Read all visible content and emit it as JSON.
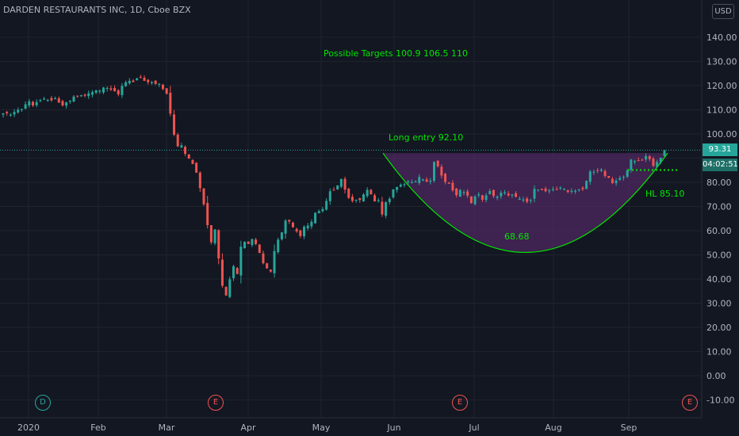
{
  "header": {
    "symbol_title": "DARDEN RESTAURANTS INC, 1D, Cboe BZX",
    "currency": "USD"
  },
  "price_tags": {
    "last_price": "93.31",
    "countdown": "04:02:51"
  },
  "annotations": {
    "targets": "Possible Targets  100.9   106.5   110",
    "long_entry": "Long entry 92.10",
    "hl": "HL 85.10",
    "bottom": "68.68"
  },
  "events": [
    {
      "label": "D",
      "kind": "dividend"
    },
    {
      "label": "E",
      "kind": "earnings"
    },
    {
      "label": "E",
      "kind": "earnings"
    },
    {
      "label": "E",
      "kind": "earnings"
    }
  ],
  "colors": {
    "up": "#26a69a",
    "down": "#ef5350",
    "annotation": "#00e600",
    "cup_fill": "#5b2a6e",
    "price_line": "#26a69a"
  },
  "chart_data": {
    "type": "candlestick",
    "title": "DARDEN RESTAURANTS INC, 1D, Cboe BZX",
    "y_ticks": [
      140,
      130,
      120,
      110,
      100,
      90,
      80,
      70,
      60,
      50,
      40,
      30,
      20,
      10,
      0,
      -10
    ],
    "y_tick_labels": [
      "140.00",
      "130.00",
      "120.00",
      "110.00",
      "100.00",
      "",
      "80.00",
      "70.00",
      "60.00",
      "50.00",
      "40.00",
      "30.00",
      "20.00",
      "10.00",
      "0.00",
      "-10.00"
    ],
    "x_tick_labels": [
      "2020",
      "Feb",
      "Mar",
      "Apr",
      "May",
      "Jun",
      "Jul",
      "Aug",
      "Sep"
    ],
    "ylim": [
      -14,
      153
    ],
    "last_price": 93.31,
    "long_entry": 92.1,
    "higher_low": 85.1,
    "cup_bottom": 68.68,
    "cup_curve_low": 51,
    "series": [
      {
        "close": [
          108.5,
          108.6,
          108.0,
          109.1,
          110.0,
          110.3,
          112.3,
          113.5,
          111.8,
          113.2,
          114.0,
          114.6,
          114.1,
          113.9,
          114.8,
          113.0,
          111.8,
          113.1,
          113.7,
          115.5,
          115.5,
          116.0,
          115.8,
          116.8,
          117.3,
          118.0,
          117.9,
          119.2,
          119.0,
          118.3,
          117.7,
          116.4,
          119.9,
          121.4,
          122.0,
          121.5,
          123.0,
          123.3,
          122.0,
          121.4,
          121.4,
          120.7,
          120.8,
          118.6,
          116.6,
          108.4,
          99.7,
          94.9,
          95.3,
          91.8,
          89.8,
          87.6,
          84.0,
          77.6,
          70.9,
          62.3,
          55.2,
          60.5,
          48.5,
          37.2,
          33.2,
          39.9,
          45.3,
          42.1,
          53.4,
          55.4,
          54.5,
          56.5,
          54.5,
          50.8,
          46.5,
          44.4,
          43.1,
          51.6,
          56.3,
          59.3,
          64.2,
          63.8,
          61.4,
          59.7,
          57.8,
          61.6,
          62.1,
          63.7,
          67.4,
          68.1,
          68.9,
          72.3,
          76.3,
          76.6,
          78.7,
          81.4,
          77.0,
          73.6,
          72.3,
          72.8,
          72.7,
          75.0,
          76.9,
          75.0,
          72.1,
          72.6,
          66.7,
          71.8,
          73.2,
          77.1,
          78.1,
          79.0,
          79.3,
          80.4,
          80.1,
          80.4,
          82.2,
          81.2,
          80.3,
          80.7,
          88.4,
          86.6,
          82.8,
          80.2,
          79.4,
          76.7,
          74.7,
          76.8,
          75.9,
          74.5,
          71.4,
          74.1,
          75.0,
          72.8,
          74.6,
          76.4,
          74.3,
          74.1,
          75.7,
          75.9,
          74.6,
          75.0,
          73.9,
          73.2,
          72.9,
          71.9,
          72.7,
          77.3,
          77.0,
          76.9,
          76.3,
          76.7,
          77.2,
          76.8,
          77.8,
          77.3,
          76.0,
          76.5,
          76.5,
          77.1,
          77.2,
          80.6,
          84.5,
          84.4,
          84.7,
          85.3,
          82.6,
          81.9,
          79.7,
          80.7,
          81.8,
          82.3,
          84.9,
          89.4,
          88.8,
          88.8,
          89.0,
          90.8,
          89.6,
          86.8,
          88.4,
          90.2,
          93.3
        ]
      }
    ]
  }
}
